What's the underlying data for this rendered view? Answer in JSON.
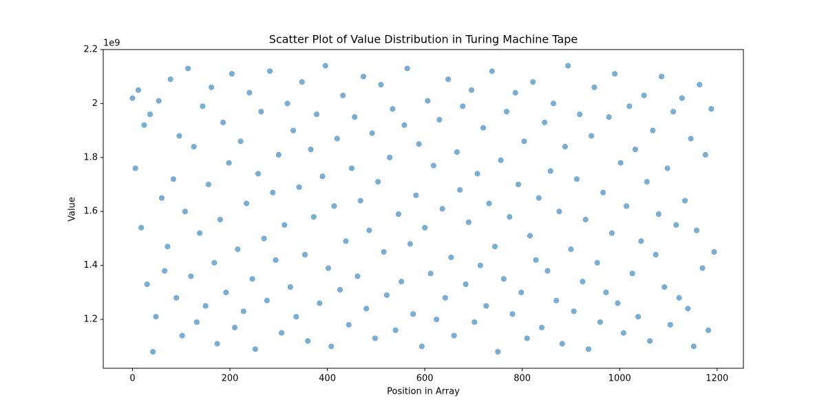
{
  "chart_data": {
    "type": "scatter",
    "title": "Scatter Plot of Value Distribution in Turing Machine Tape",
    "xlabel": "Position in Array",
    "ylabel": "Value",
    "y_offset_label": "1e9",
    "color": "#1f77b4",
    "alpha": 0.6,
    "grid": false,
    "xlim": [
      -60,
      1254
    ],
    "ylim": [
      1.019,
      2.2
    ],
    "xticks": [
      0,
      200,
      400,
      600,
      800,
      1000,
      1200
    ],
    "yticks": [
      1.2,
      1.4,
      1.6,
      1.8,
      2.0,
      2.2
    ],
    "x": [
      0,
      6,
      12,
      18,
      24,
      30,
      36,
      42,
      48,
      54,
      60,
      66,
      72,
      78,
      84,
      90,
      96,
      102,
      108,
      114,
      120,
      126,
      132,
      138,
      144,
      150,
      156,
      162,
      168,
      174,
      180,
      186,
      192,
      198,
      204,
      210,
      216,
      222,
      228,
      234,
      240,
      246,
      252,
      258,
      264,
      270,
      276,
      282,
      288,
      294,
      300,
      306,
      312,
      318,
      324,
      330,
      336,
      342,
      348,
      354,
      360,
      366,
      372,
      378,
      384,
      390,
      396,
      402,
      408,
      414,
      420,
      426,
      432,
      438,
      444,
      450,
      456,
      462,
      468,
      474,
      480,
      486,
      492,
      498,
      504,
      510,
      516,
      522,
      528,
      534,
      540,
      546,
      552,
      558,
      564,
      570,
      576,
      582,
      588,
      594,
      600,
      606,
      612,
      618,
      624,
      630,
      636,
      642,
      648,
      654,
      660,
      666,
      672,
      678,
      684,
      690,
      696,
      702,
      708,
      714,
      720,
      726,
      732,
      738,
      744,
      750,
      756,
      762,
      768,
      774,
      780,
      786,
      792,
      798,
      804,
      810,
      816,
      822,
      828,
      834,
      840,
      846,
      852,
      858,
      864,
      870,
      876,
      882,
      888,
      894,
      900,
      906,
      912,
      918,
      924,
      930,
      936,
      942,
      948,
      954,
      960,
      966,
      972,
      978,
      984,
      990,
      996,
      1002,
      1008,
      1014,
      1020,
      1026,
      1032,
      1038,
      1044,
      1050,
      1056,
      1062,
      1068,
      1074,
      1080,
      1086,
      1092,
      1098,
      1104,
      1110,
      1116,
      1122,
      1128,
      1134,
      1140,
      1146,
      1152,
      1158,
      1164,
      1170,
      1176,
      1182,
      1188,
      1194
    ],
    "values": [
      2.02,
      1.76,
      2.05,
      1.54,
      1.92,
      1.33,
      1.96,
      1.08,
      1.21,
      2.01,
      1.65,
      1.38,
      1.47,
      2.09,
      1.72,
      1.28,
      1.88,
      1.14,
      1.6,
      2.13,
      1.36,
      1.84,
      1.19,
      1.52,
      1.99,
      1.25,
      1.7,
      2.06,
      1.41,
      1.11,
      1.57,
      1.93,
      1.3,
      1.78,
      2.11,
      1.17,
      1.46,
      1.86,
      1.23,
      1.63,
      2.04,
      1.35,
      1.09,
      1.74,
      1.97,
      1.5,
      1.27,
      2.12,
      1.67,
      1.42,
      1.81,
      1.15,
      1.55,
      2.0,
      1.32,
      1.9,
      1.21,
      1.69,
      2.08,
      1.44,
      1.12,
      1.83,
      1.58,
      1.96,
      1.26,
      1.73,
      2.14,
      1.39,
      1.1,
      1.62,
      1.87,
      1.31,
      2.03,
      1.49,
      1.18,
      1.76,
      1.95,
      1.36,
      1.64,
      2.1,
      1.24,
      1.53,
      1.89,
      1.13,
      1.71,
      2.07,
      1.45,
      1.29,
      1.8,
      1.98,
      1.16,
      1.59,
      1.34,
      1.92,
      2.13,
      1.48,
      1.22,
      1.66,
      1.85,
      1.1,
      1.54,
      2.01,
      1.37,
      1.77,
      1.2,
      1.94,
      1.61,
      1.28,
      2.09,
      1.43,
      1.14,
      1.82,
      1.68,
      1.99,
      1.33,
      1.56,
      2.05,
      1.19,
      1.74,
      1.4,
      1.91,
      1.25,
      1.63,
      2.12,
      1.47,
      1.08,
      1.79,
      1.35,
      1.97,
      1.58,
      1.22,
      2.04,
      1.7,
      1.3,
      1.86,
      1.13,
      1.51,
      2.08,
      1.42,
      1.65,
      1.17,
      1.93,
      1.38,
      1.75,
      2.0,
      1.27,
      1.6,
      1.11,
      1.84,
      2.14,
      1.46,
      1.23,
      1.72,
      1.96,
      1.34,
      1.57,
      1.09,
      1.88,
      2.06,
      1.41,
      1.19,
      1.67,
      1.3,
      1.95,
      1.52,
      2.11,
      1.26,
      1.78,
      1.15,
      1.62,
      1.99,
      1.37,
      1.83,
      1.21,
      1.49,
      2.03,
      1.71,
      1.12,
      1.9,
      1.44,
      1.59,
      2.1,
      1.32,
      1.76,
      1.18,
      1.97,
      1.55,
      1.28,
      2.02,
      1.64,
      1.24,
      1.87,
      1.1,
      1.53,
      2.07,
      1.39,
      1.81,
      1.16,
      1.98,
      1.45
    ]
  }
}
